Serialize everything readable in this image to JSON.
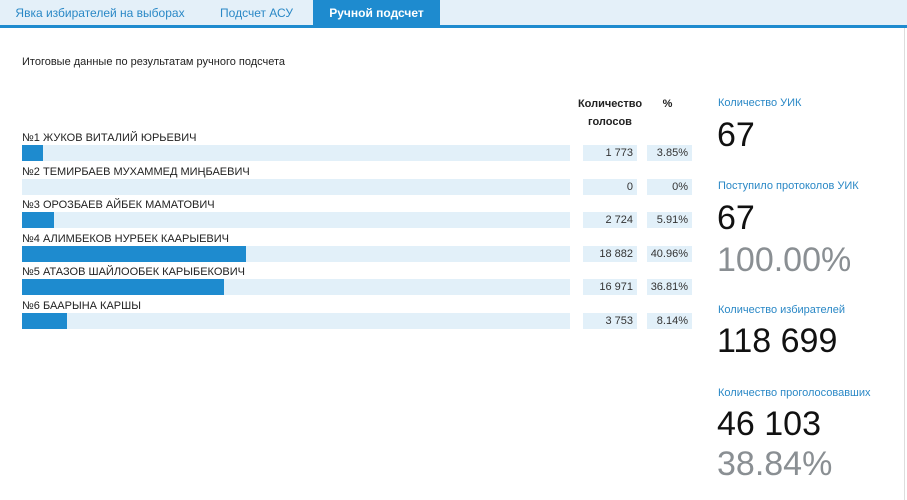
{
  "tabs": [
    {
      "label": "Явка избирателей на выборах",
      "active": false
    },
    {
      "label": "Подсчет АСУ",
      "active": false
    },
    {
      "label": "Ручной подсчет",
      "active": true
    }
  ],
  "subtitle": "Итоговые данные по результатам ручного подсчета",
  "headers": {
    "votes_line1": "Количество",
    "votes_line2": "голосов",
    "percent": "%"
  },
  "candidates": [
    {
      "name": "№1 ЖУКОВ ВИТАЛИЙ ЮРЬЕВИЧ",
      "votes": "1 773",
      "percent": "3.85%",
      "share": 3.85
    },
    {
      "name": "№2 ТЕМИРБАЕВ МУХАММЕД МИҢБАЕВИЧ",
      "votes": "0",
      "percent": "0%",
      "share": 0
    },
    {
      "name": "№3 ОРОЗБАЕВ АЙБЕК МАМАТОВИЧ",
      "votes": "2 724",
      "percent": "5.91%",
      "share": 5.91
    },
    {
      "name": "№4 АЛИМБЕКОВ НУРБЕК КААРЫЕВИЧ",
      "votes": "18 882",
      "percent": "40.96%",
      "share": 40.96
    },
    {
      "name": "№5 АТАЗОВ ШАЙЛООБЕК КАРЫБЕКОВИЧ",
      "votes": "16 971",
      "percent": "36.81%",
      "share": 36.81
    },
    {
      "name": "№6 БААРЫНА КАРШЫ",
      "votes": "3 753",
      "percent": "8.14%",
      "share": 8.14
    }
  ],
  "stats": {
    "uik_label": "Количество УИК",
    "uik_value": "67",
    "protocols_label": "Поступило протоколов УИК",
    "protocols_value": "67",
    "protocols_percent": "100.00%",
    "voters_label": "Количество избирателей",
    "voters_value": "118 699",
    "voted_label": "Количество проголосовавших",
    "voted_value": "46 103",
    "voted_percent": "38.84%"
  },
  "colors": {
    "accent": "#1e8bcf",
    "track": "#e2f0f9"
  }
}
